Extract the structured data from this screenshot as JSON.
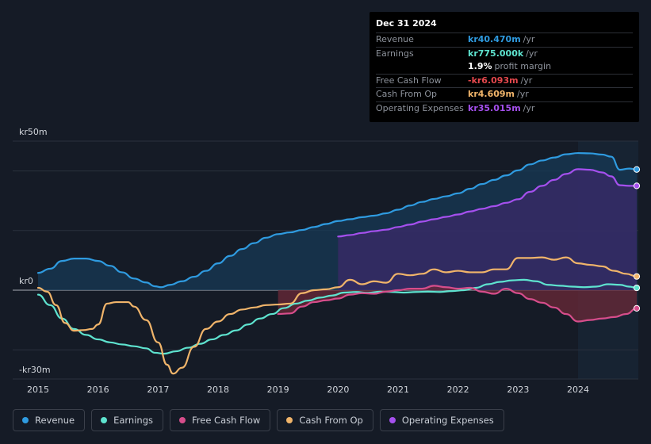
{
  "tooltip": {
    "date": "Dec 31 2024",
    "rows": [
      {
        "label": "Revenue",
        "value": "kr40.470m",
        "unit": "/yr",
        "color": "#2f9be0"
      },
      {
        "label": "Earnings",
        "value": "kr775.000k",
        "unit": "/yr",
        "color": "#5ee3cf"
      },
      {
        "label": "",
        "value": "1.9%",
        "unit": "profit margin",
        "color": "#ffffff"
      },
      {
        "label": "Free Cash Flow",
        "value": "-kr6.093m",
        "unit": "/yr",
        "color": "#e5484d"
      },
      {
        "label": "Cash From Op",
        "value": "kr4.609m",
        "unit": "/yr",
        "color": "#f0b46a"
      },
      {
        "label": "Operating Expenses",
        "value": "kr35.015m",
        "unit": "/yr",
        "color": "#a550ee"
      }
    ]
  },
  "legend": [
    {
      "label": "Revenue",
      "color": "#2f9be0"
    },
    {
      "label": "Earnings",
      "color": "#5ee3cf"
    },
    {
      "label": "Free Cash Flow",
      "color": "#d64d8b"
    },
    {
      "label": "Cash From Op",
      "color": "#f0b46a"
    },
    {
      "label": "Operating Expenses",
      "color": "#a550ee"
    }
  ],
  "chart_data": {
    "type": "line",
    "title": "",
    "ylabel_top": "kr50m",
    "ylabel_zero": "kr0",
    "ylabel_bottom": "-kr30m",
    "ylim": [
      -30,
      50
    ],
    "xlim": [
      2014.85,
      2025.0
    ],
    "x_ticks": [
      "2015",
      "2016",
      "2017",
      "2018",
      "2019",
      "2020",
      "2021",
      "2022",
      "2023",
      "2024"
    ],
    "x_tick_values": [
      2015,
      2016,
      2017,
      2018,
      2019,
      2020,
      2021,
      2022,
      2023,
      2024
    ],
    "forecast_start": 2024.0,
    "series": [
      {
        "name": "Revenue",
        "color": "#2f9be0",
        "fill": "#173a55",
        "points": [
          [
            2015.0,
            5.8
          ],
          [
            2015.2,
            7.2
          ],
          [
            2015.4,
            9.8
          ],
          [
            2015.6,
            10.6
          ],
          [
            2015.8,
            10.6
          ],
          [
            2016.0,
            9.8
          ],
          [
            2016.2,
            8.2
          ],
          [
            2016.4,
            6.0
          ],
          [
            2016.6,
            3.9
          ],
          [
            2016.8,
            2.6
          ],
          [
            2016.95,
            1.3
          ],
          [
            2017.05,
            1.0
          ],
          [
            2017.2,
            1.8
          ],
          [
            2017.4,
            3.0
          ],
          [
            2017.6,
            4.5
          ],
          [
            2017.8,
            6.5
          ],
          [
            2018.0,
            9.0
          ],
          [
            2018.2,
            11.5
          ],
          [
            2018.4,
            13.8
          ],
          [
            2018.6,
            15.8
          ],
          [
            2018.8,
            17.6
          ],
          [
            2019.0,
            18.8
          ],
          [
            2019.2,
            19.4
          ],
          [
            2019.4,
            20.2
          ],
          [
            2019.6,
            21.2
          ],
          [
            2019.8,
            22.2
          ],
          [
            2020.0,
            23.2
          ],
          [
            2020.2,
            23.8
          ],
          [
            2020.4,
            24.5
          ],
          [
            2020.6,
            25.0
          ],
          [
            2020.8,
            25.8
          ],
          [
            2021.0,
            27.0
          ],
          [
            2021.2,
            28.4
          ],
          [
            2021.4,
            29.6
          ],
          [
            2021.6,
            30.6
          ],
          [
            2021.8,
            31.5
          ],
          [
            2022.0,
            32.5
          ],
          [
            2022.2,
            34.0
          ],
          [
            2022.4,
            35.6
          ],
          [
            2022.6,
            37.0
          ],
          [
            2022.8,
            38.5
          ],
          [
            2023.0,
            40.2
          ],
          [
            2023.2,
            42.2
          ],
          [
            2023.4,
            43.5
          ],
          [
            2023.6,
            44.5
          ],
          [
            2023.8,
            45.6
          ],
          [
            2024.0,
            46.0
          ],
          [
            2024.2,
            45.9
          ],
          [
            2024.4,
            45.5
          ],
          [
            2024.55,
            44.8
          ],
          [
            2024.7,
            40.4
          ],
          [
            2024.85,
            40.8
          ],
          [
            2024.98,
            40.5
          ]
        ]
      },
      {
        "name": "Operating Expenses",
        "color": "#a550ee",
        "fill": "#3b2a6a",
        "points": [
          [
            2020.0,
            18.0
          ],
          [
            2020.2,
            18.5
          ],
          [
            2020.4,
            19.2
          ],
          [
            2020.6,
            19.8
          ],
          [
            2020.8,
            20.3
          ],
          [
            2021.0,
            21.2
          ],
          [
            2021.2,
            22.0
          ],
          [
            2021.4,
            23.0
          ],
          [
            2021.6,
            23.8
          ],
          [
            2021.8,
            24.6
          ],
          [
            2022.0,
            25.4
          ],
          [
            2022.2,
            26.4
          ],
          [
            2022.4,
            27.3
          ],
          [
            2022.6,
            28.2
          ],
          [
            2022.8,
            29.3
          ],
          [
            2023.0,
            30.5
          ],
          [
            2023.2,
            33.0
          ],
          [
            2023.4,
            35.0
          ],
          [
            2023.6,
            37.0
          ],
          [
            2023.8,
            39.0
          ],
          [
            2024.0,
            40.6
          ],
          [
            2024.2,
            40.4
          ],
          [
            2024.4,
            39.5
          ],
          [
            2024.55,
            38.2
          ],
          [
            2024.7,
            35.2
          ],
          [
            2024.85,
            35.0
          ],
          [
            2024.98,
            35.0
          ]
        ]
      },
      {
        "name": "Earnings",
        "color": "#5ee3cf",
        "points": [
          [
            2015.0,
            -1.5
          ],
          [
            2015.2,
            -5.0
          ],
          [
            2015.4,
            -9.5
          ],
          [
            2015.6,
            -13.0
          ],
          [
            2015.8,
            -15.0
          ],
          [
            2016.0,
            -16.5
          ],
          [
            2016.2,
            -17.5
          ],
          [
            2016.4,
            -18.2
          ],
          [
            2016.6,
            -18.8
          ],
          [
            2016.8,
            -19.5
          ],
          [
            2016.95,
            -21.0
          ],
          [
            2017.1,
            -21.3
          ],
          [
            2017.3,
            -20.5
          ],
          [
            2017.5,
            -19.3
          ],
          [
            2017.7,
            -18.0
          ],
          [
            2017.9,
            -16.5
          ],
          [
            2018.1,
            -15.0
          ],
          [
            2018.3,
            -13.5
          ],
          [
            2018.5,
            -11.5
          ],
          [
            2018.7,
            -9.5
          ],
          [
            2018.9,
            -8.0
          ],
          [
            2019.1,
            -6.0
          ],
          [
            2019.3,
            -4.5
          ],
          [
            2019.5,
            -3.5
          ],
          [
            2019.7,
            -2.5
          ],
          [
            2019.9,
            -1.8
          ],
          [
            2020.1,
            -0.8
          ],
          [
            2020.3,
            -0.6
          ],
          [
            2020.5,
            -0.9
          ],
          [
            2020.7,
            -0.5
          ],
          [
            2020.9,
            -0.6
          ],
          [
            2021.1,
            -0.8
          ],
          [
            2021.3,
            -0.6
          ],
          [
            2021.5,
            -0.5
          ],
          [
            2021.7,
            -0.6
          ],
          [
            2021.9,
            -0.3
          ],
          [
            2022.1,
            0.0
          ],
          [
            2022.3,
            0.8
          ],
          [
            2022.5,
            2.0
          ],
          [
            2022.7,
            2.8
          ],
          [
            2022.9,
            3.3
          ],
          [
            2023.1,
            3.5
          ],
          [
            2023.3,
            3.0
          ],
          [
            2023.5,
            1.8
          ],
          [
            2023.7,
            1.5
          ],
          [
            2023.9,
            1.2
          ],
          [
            2024.1,
            1.0
          ],
          [
            2024.3,
            1.2
          ],
          [
            2024.5,
            2.0
          ],
          [
            2024.7,
            1.8
          ],
          [
            2024.85,
            1.2
          ],
          [
            2024.98,
            0.775
          ]
        ]
      },
      {
        "name": "Free Cash Flow",
        "color": "#d64d8b",
        "fill": "#6b2a38",
        "points": [
          [
            2019.0,
            -8.0
          ],
          [
            2019.2,
            -7.8
          ],
          [
            2019.4,
            -5.5
          ],
          [
            2019.6,
            -4.0
          ],
          [
            2019.8,
            -3.4
          ],
          [
            2020.0,
            -2.8
          ],
          [
            2020.2,
            -1.5
          ],
          [
            2020.4,
            -1.0
          ],
          [
            2020.6,
            -1.2
          ],
          [
            2020.8,
            -0.5
          ],
          [
            2021.0,
            0.0
          ],
          [
            2021.2,
            0.5
          ],
          [
            2021.4,
            0.5
          ],
          [
            2021.6,
            1.5
          ],
          [
            2021.8,
            1.0
          ],
          [
            2022.0,
            0.5
          ],
          [
            2022.2,
            0.8
          ],
          [
            2022.4,
            -0.5
          ],
          [
            2022.6,
            -1.2
          ],
          [
            2022.8,
            0.5
          ],
          [
            2023.0,
            -1.0
          ],
          [
            2023.2,
            -3.0
          ],
          [
            2023.4,
            -4.2
          ],
          [
            2023.6,
            -5.8
          ],
          [
            2023.8,
            -8.0
          ],
          [
            2024.0,
            -10.5
          ],
          [
            2024.2,
            -10.0
          ],
          [
            2024.4,
            -9.5
          ],
          [
            2024.6,
            -9.0
          ],
          [
            2024.8,
            -8.0
          ],
          [
            2024.98,
            -6.093
          ]
        ]
      },
      {
        "name": "Cash From Op",
        "color": "#f0b46a",
        "points": [
          [
            2015.0,
            0.8
          ],
          [
            2015.15,
            -0.5
          ],
          [
            2015.3,
            -5.0
          ],
          [
            2015.45,
            -11.0
          ],
          [
            2015.6,
            -13.6
          ],
          [
            2015.75,
            -13.4
          ],
          [
            2015.9,
            -13.0
          ],
          [
            2016.0,
            -11.5
          ],
          [
            2016.15,
            -4.5
          ],
          [
            2016.3,
            -4.0
          ],
          [
            2016.5,
            -4.0
          ],
          [
            2016.6,
            -5.5
          ],
          [
            2016.8,
            -10.0
          ],
          [
            2017.0,
            -17.5
          ],
          [
            2017.15,
            -25.0
          ],
          [
            2017.25,
            -28.0
          ],
          [
            2017.4,
            -26.0
          ],
          [
            2017.6,
            -19.0
          ],
          [
            2017.8,
            -13.0
          ],
          [
            2018.0,
            -10.5
          ],
          [
            2018.2,
            -8.0
          ],
          [
            2018.4,
            -6.5
          ],
          [
            2018.6,
            -5.8
          ],
          [
            2018.8,
            -5.0
          ],
          [
            2019.0,
            -4.8
          ],
          [
            2019.2,
            -4.5
          ],
          [
            2019.4,
            -1.0
          ],
          [
            2019.6,
            0.0
          ],
          [
            2019.8,
            0.3
          ],
          [
            2020.0,
            1.0
          ],
          [
            2020.2,
            3.5
          ],
          [
            2020.4,
            2.0
          ],
          [
            2020.6,
            3.0
          ],
          [
            2020.8,
            2.5
          ],
          [
            2021.0,
            5.5
          ],
          [
            2021.2,
            5.0
          ],
          [
            2021.4,
            5.5
          ],
          [
            2021.6,
            7.0
          ],
          [
            2021.8,
            6.0
          ],
          [
            2022.0,
            6.5
          ],
          [
            2022.2,
            6.0
          ],
          [
            2022.4,
            6.0
          ],
          [
            2022.6,
            7.0
          ],
          [
            2022.8,
            7.0
          ],
          [
            2023.0,
            10.8
          ],
          [
            2023.2,
            10.8
          ],
          [
            2023.4,
            11.0
          ],
          [
            2023.6,
            10.2
          ],
          [
            2023.8,
            11.0
          ],
          [
            2024.0,
            9.0
          ],
          [
            2024.2,
            8.5
          ],
          [
            2024.4,
            8.0
          ],
          [
            2024.6,
            6.5
          ],
          [
            2024.8,
            5.5
          ],
          [
            2024.98,
            4.609
          ]
        ]
      }
    ]
  }
}
